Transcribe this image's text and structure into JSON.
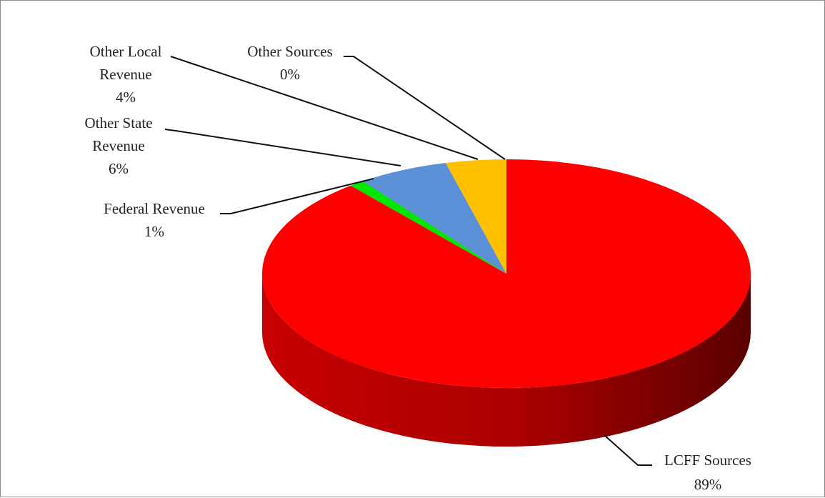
{
  "chart_data": {
    "type": "pie",
    "style": "3d",
    "categories": [
      "LCFF Sources",
      "Federal Revenue",
      "Other State Revenue",
      "Other Local Revenue",
      "Other Sources"
    ],
    "values": [
      89,
      1,
      6,
      4,
      0
    ],
    "label_lines": [
      [
        "LCFF Sources",
        "89%"
      ],
      [
        "Federal Revenue",
        "1%"
      ],
      [
        "Other State",
        "Revenue",
        "6%"
      ],
      [
        "Other Local",
        "Revenue",
        "4%"
      ],
      [
        "Other Sources",
        "0%"
      ]
    ],
    "colors": [
      "#ff0000",
      "#00e600",
      "#5b8fd6",
      "#ffc000",
      "#ff0000"
    ],
    "side_color_light": "#c80000",
    "side_color_dark": "#5a0000",
    "title": "",
    "legend": "none"
  }
}
